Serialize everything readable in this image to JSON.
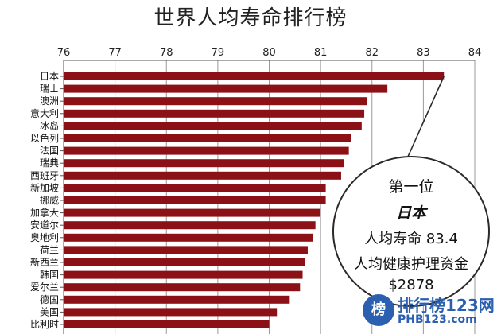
{
  "chart_data": {
    "type": "bar",
    "orientation": "horizontal",
    "title": "世界人均寿命排行榜",
    "categories": [
      "日本",
      "瑞士",
      "澳洲",
      "意大利",
      "冰岛",
      "以色列",
      "法国",
      "瑞典",
      "西班牙",
      "新加坡",
      "挪威",
      "加拿大",
      "安道尔",
      "奥地利",
      "荷兰",
      "新西兰",
      "韩国",
      "爱尔兰",
      "德国",
      "美国",
      "比利时"
    ],
    "values": [
      83.4,
      82.3,
      81.9,
      81.85,
      81.8,
      81.6,
      81.55,
      81.45,
      81.4,
      81.1,
      81.1,
      81.0,
      80.9,
      80.85,
      80.75,
      80.7,
      80.65,
      80.6,
      80.4,
      80.15,
      80.0
    ],
    "xlim": [
      76,
      84
    ],
    "ticks": [
      "76",
      "77",
      "78",
      "79",
      "80",
      "81",
      "82",
      "83",
      "84"
    ],
    "bar_color": "#8b1117",
    "grid": "vertical",
    "xlabel": "",
    "ylabel": ""
  },
  "callout": {
    "line1": "第一位",
    "line2": "日本",
    "line3": "人均寿命 83.4",
    "line4": "人均健康护理资金",
    "line5": "$2878"
  },
  "watermark": {
    "badge": "榜",
    "text": "排行榜123网",
    "sub": "PHB123.com",
    "color": "#2b5fb0"
  }
}
